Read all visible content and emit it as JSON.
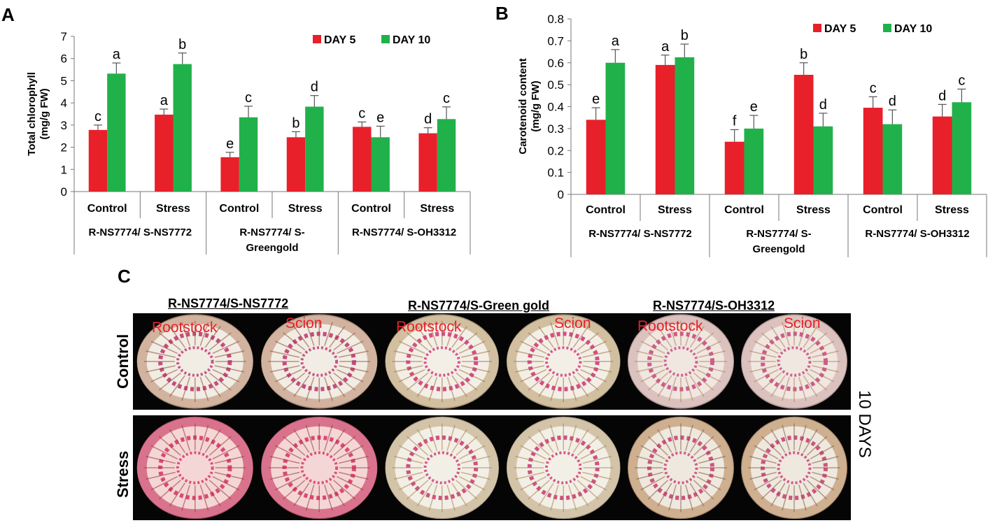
{
  "panels": {
    "a": "A",
    "b": "B",
    "c": "C"
  },
  "chart_data": [
    {
      "type": "bar",
      "ylabel": "Total chlorophyll\n(mg/g FW)",
      "ylim": [
        0,
        7
      ],
      "yticks": [
        0,
        1,
        2,
        3,
        4,
        5,
        6,
        7
      ],
      "categories": [
        "Control",
        "Stress",
        "Control",
        "Stress",
        "Control",
        "Stress"
      ],
      "groups": [
        [
          "R-NS7774/ S-NS7772"
        ],
        [
          "R-NS7774/ S-",
          "Greengold"
        ],
        [
          "R-NS7774/ S-OH3312"
        ]
      ],
      "series": [
        {
          "name": "DAY 5",
          "color": "#e8202a",
          "values": [
            2.78,
            3.47,
            1.55,
            2.45,
            2.92,
            2.63
          ],
          "errors": [
            0.22,
            0.25,
            0.22,
            0.25,
            0.22,
            0.25
          ],
          "letters": [
            "c",
            "a",
            "e",
            "b",
            "c",
            "d"
          ]
        },
        {
          "name": "DAY 10",
          "color": "#21b14b",
          "values": [
            5.32,
            5.75,
            3.35,
            3.83,
            2.45,
            3.27
          ],
          "errors": [
            0.48,
            0.5,
            0.5,
            0.5,
            0.5,
            0.55
          ],
          "letters": [
            "a",
            "b",
            "c",
            "d",
            "e",
            "c"
          ]
        }
      ],
      "legend_position": "top-right"
    },
    {
      "type": "bar",
      "ylabel": "Carotenoid content\n(mg/g FW)",
      "ylim": [
        0,
        0.8
      ],
      "yticks": [
        0,
        0.1,
        0.2,
        0.3,
        0.4,
        0.5,
        0.6,
        0.7,
        0.8
      ],
      "categories": [
        "Control",
        "Stress",
        "Control",
        "Stress",
        "Control",
        "Stress"
      ],
      "groups": [
        [
          "R-NS7774/ S-NS7772"
        ],
        [
          "R-NS7774/ S-",
          "Greengold"
        ],
        [
          "R-NS7774/ S-OH3312"
        ]
      ],
      "series": [
        {
          "name": "DAY 5",
          "color": "#e8202a",
          "values": [
            0.34,
            0.59,
            0.24,
            0.545,
            0.395,
            0.355
          ],
          "errors": [
            0.055,
            0.045,
            0.055,
            0.055,
            0.05,
            0.055
          ],
          "letters": [
            "e",
            "a",
            "f",
            "b",
            "c",
            "d"
          ]
        },
        {
          "name": "DAY 10",
          "color": "#21b14b",
          "values": [
            0.6,
            0.625,
            0.3,
            0.31,
            0.32,
            0.42
          ],
          "errors": [
            0.06,
            0.06,
            0.06,
            0.06,
            0.065,
            0.06
          ],
          "letters": [
            "a",
            "b",
            "e",
            "d",
            "d",
            "c"
          ]
        }
      ],
      "legend_position": "top-right"
    }
  ],
  "micrographs": {
    "columns": [
      "R-NS7774/S-NS7772",
      "R-NS7774/S-Green gold",
      "R-NS7774/S-OH3312"
    ],
    "rows": [
      "Control",
      "Stress"
    ],
    "tissue_labels": {
      "rootstock": "Rootstock",
      "scion": "Scion"
    },
    "side_label": "10 DAYS"
  }
}
